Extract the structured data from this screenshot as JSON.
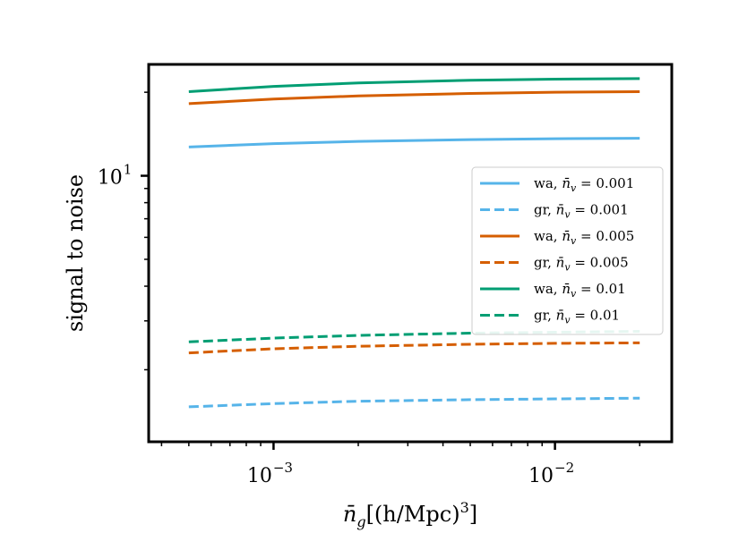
{
  "chart_data": {
    "type": "line",
    "xscale": "log",
    "yscale": "log",
    "xlabel_main": "n̄",
    "xlabel_sub": "g",
    "xlabel_rest": "[(h/Mpc)",
    "xlabel_sup": "3",
    "xlabel_end": "]",
    "ylabel": "signal to noise",
    "xlim": [
      0.00036,
      0.026
    ],
    "ylim": [
      1.1,
      25.2
    ],
    "x_major_ticks": [
      {
        "value": 0.001,
        "base": "10",
        "exp": "−3"
      },
      {
        "value": 0.01,
        "base": "10",
        "exp": "−2"
      }
    ],
    "y_major_ticks": [
      {
        "value": 10,
        "base": "10",
        "exp": "1"
      }
    ],
    "x": [
      0.0005,
      0.001,
      0.002,
      0.005,
      0.01,
      0.02
    ],
    "series": [
      {
        "name": "wa, n̄v = 0.001",
        "label_prefix": "wa, ",
        "nv_value": "0.001",
        "color": "#56b4e9",
        "style": "solid",
        "values": [
          12.7,
          13.05,
          13.3,
          13.5,
          13.6,
          13.65
        ]
      },
      {
        "name": "gr, n̄v = 0.001",
        "label_prefix": "gr, ",
        "nv_value": "0.001",
        "color": "#56b4e9",
        "style": "dashed",
        "values": [
          1.47,
          1.51,
          1.54,
          1.56,
          1.57,
          1.58
        ]
      },
      {
        "name": "wa, n̄v = 0.005",
        "label_prefix": "wa, ",
        "nv_value": "0.005",
        "color": "#d55e00",
        "style": "solid",
        "values": [
          18.2,
          18.9,
          19.4,
          19.8,
          20.0,
          20.1
        ]
      },
      {
        "name": "gr, n̄v = 0.005",
        "label_prefix": "gr, ",
        "nv_value": "0.005",
        "color": "#d55e00",
        "style": "dashed",
        "values": [
          2.3,
          2.38,
          2.43,
          2.47,
          2.49,
          2.5
        ]
      },
      {
        "name": "wa, n̄v = 0.01",
        "label_prefix": "wa, ",
        "nv_value": "0.01",
        "color": "#009e73",
        "style": "solid",
        "values": [
          20.1,
          21.0,
          21.6,
          22.1,
          22.3,
          22.4
        ]
      },
      {
        "name": "gr, n̄v = 0.01",
        "label_prefix": "gr, ",
        "nv_value": "0.01",
        "color": "#009e73",
        "style": "dashed",
        "values": [
          2.52,
          2.6,
          2.66,
          2.71,
          2.73,
          2.75
        ]
      }
    ],
    "legend_placement": "center-right"
  }
}
